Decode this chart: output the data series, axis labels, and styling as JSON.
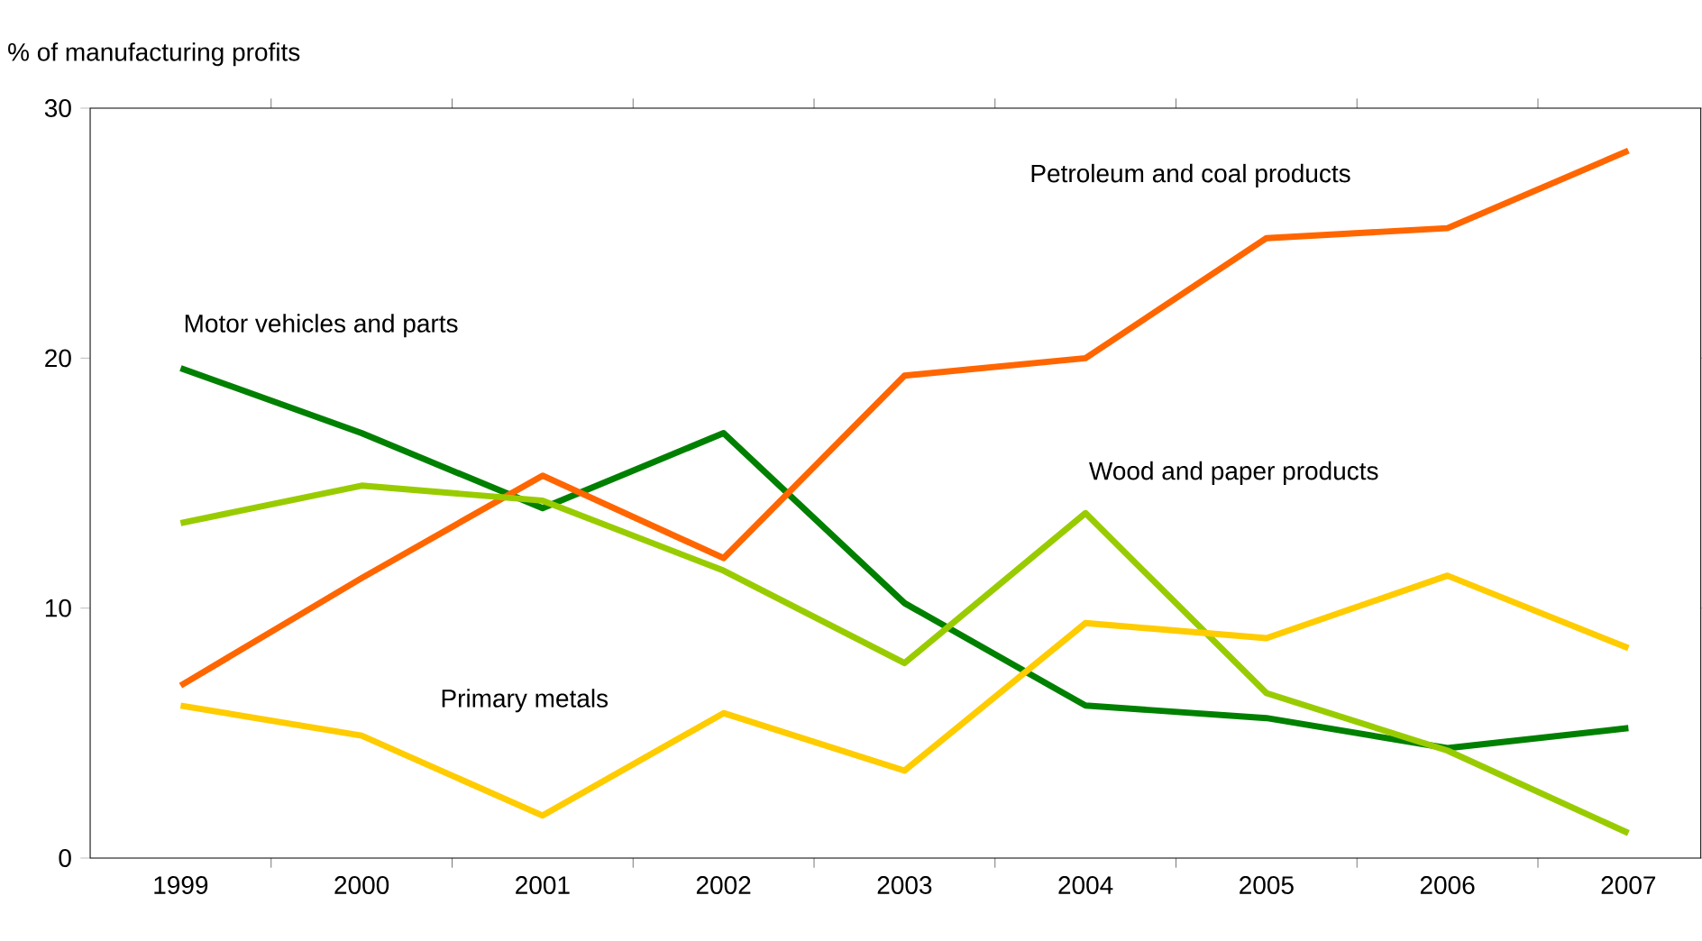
{
  "chart_data": {
    "type": "line",
    "ylabel": "% of manufacturing profits",
    "categories": [
      "1999",
      "2000",
      "2001",
      "2002",
      "2003",
      "2004",
      "2005",
      "2006",
      "2007"
    ],
    "series": [
      {
        "name": "Motor vehicles and parts",
        "color": "#008000",
        "values": [
          19.6,
          17.0,
          14.0,
          17.0,
          10.2,
          6.1,
          5.6,
          4.4,
          5.2
        ]
      },
      {
        "name": "Petroleum and coal products",
        "color": "#ff6600",
        "values": [
          6.9,
          11.2,
          15.3,
          12.0,
          19.3,
          20.0,
          24.8,
          25.2,
          28.3
        ]
      },
      {
        "name": "Wood and  paper products",
        "color": "#99cc00",
        "values": [
          13.4,
          14.9,
          14.3,
          11.5,
          7.8,
          13.8,
          6.6,
          4.3,
          1.0
        ]
      },
      {
        "name": "Primary metals",
        "color": "#ffcc00",
        "values": [
          6.1,
          4.9,
          1.7,
          5.8,
          3.5,
          9.4,
          8.8,
          11.3,
          8.4
        ]
      }
    ],
    "ylim": [
      0,
      30
    ],
    "yticks": [
      0,
      10,
      20,
      30
    ],
    "grid": false,
    "legend": false,
    "marker": "none",
    "line_style": "solid"
  }
}
